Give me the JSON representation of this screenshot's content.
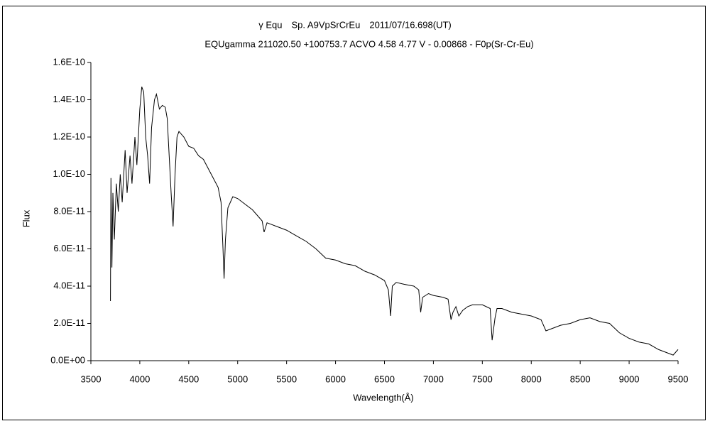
{
  "chart_data": {
    "type": "line",
    "title": "γ Equ　Sp. A9VpSrCrEu　2011/07/16.698(UT)",
    "subtitle": "EQUgamma 211020.50 +100753.7 ACVO 4.58 4.77 V - 0.00868 - F0p(Sr-Cr-Eu)",
    "xlabel": "Wavelength(Å)",
    "ylabel": "Flux",
    "color": "#000000",
    "xlim": [
      3500,
      9500
    ],
    "xticks": [
      3500,
      4000,
      4500,
      5000,
      5500,
      6000,
      6500,
      7000,
      7500,
      8000,
      8500,
      9000,
      9500
    ],
    "ylim": [
      0,
      1.6e-10
    ],
    "yticks": [
      {
        "value": 0,
        "label": "0.0E+00"
      },
      {
        "value": 2e-11,
        "label": "2.0E-11"
      },
      {
        "value": 4e-11,
        "label": "4.0E-11"
      },
      {
        "value": 6e-11,
        "label": "6.0E-11"
      },
      {
        "value": 8e-11,
        "label": "8.0E-11"
      },
      {
        "value": 1e-10,
        "label": "1.0E-10"
      },
      {
        "value": 1.2e-10,
        "label": "1.2E-10"
      },
      {
        "value": 1.4e-10,
        "label": "1.4E-10"
      },
      {
        "value": 1.6e-10,
        "label": "1.6E-10"
      }
    ],
    "x": [
      3700,
      3705,
      3715,
      3725,
      3740,
      3760,
      3780,
      3800,
      3820,
      3850,
      3870,
      3900,
      3920,
      3950,
      3970,
      4000,
      4020,
      4040,
      4060,
      4080,
      4100,
      4120,
      4150,
      4170,
      4200,
      4230,
      4260,
      4280,
      4300,
      4320,
      4340,
      4360,
      4380,
      4400,
      4450,
      4500,
      4550,
      4600,
      4650,
      4700,
      4750,
      4800,
      4830,
      4850,
      4861,
      4875,
      4900,
      4950,
      5000,
      5050,
      5100,
      5150,
      5200,
      5250,
      5270,
      5300,
      5400,
      5500,
      5600,
      5700,
      5800,
      5900,
      6000,
      6100,
      6200,
      6300,
      6400,
      6500,
      6540,
      6563,
      6580,
      6620,
      6700,
      6800,
      6850,
      6870,
      6890,
      6950,
      7000,
      7100,
      7150,
      7180,
      7200,
      7230,
      7260,
      7300,
      7350,
      7400,
      7500,
      7580,
      7600,
      7630,
      7650,
      7700,
      7800,
      7900,
      8000,
      8100,
      8150,
      8200,
      8300,
      8400,
      8500,
      8600,
      8700,
      8800,
      8900,
      9000,
      9100,
      9200,
      9300,
      9400,
      9450,
      9500
    ],
    "values": [
      3.2e-11,
      9.8e-11,
      5e-11,
      9e-11,
      6.5e-11,
      9.5e-11,
      8e-11,
      1e-10,
      8.5e-11,
      1.13e-10,
      9e-11,
      1.1e-10,
      9.5e-11,
      1.2e-10,
      1.05e-10,
      1.35e-10,
      1.47e-10,
      1.44e-10,
      1.2e-10,
      1.1e-10,
      9.5e-11,
      1.25e-10,
      1.4e-10,
      1.43e-10,
      1.35e-10,
      1.37e-10,
      1.36e-10,
      1.3e-10,
      1.1e-10,
      9e-11,
      7.2e-11,
      1e-10,
      1.2e-10,
      1.23e-10,
      1.2e-10,
      1.15e-10,
      1.14e-10,
      1.1e-10,
      1.08e-10,
      1.03e-10,
      9.8e-11,
      9.3e-11,
      8.5e-11,
      6e-11,
      4.4e-11,
      6.5e-11,
      8.2e-11,
      8.8e-11,
      8.7e-11,
      8.5e-11,
      8.3e-11,
      8.1e-11,
      7.8e-11,
      7.5e-11,
      6.9e-11,
      7.4e-11,
      7.2e-11,
      7e-11,
      6.7e-11,
      6.4e-11,
      6e-11,
      5.5e-11,
      5.4e-11,
      5.2e-11,
      5.1e-11,
      4.8e-11,
      4.6e-11,
      4.3e-11,
      3.8e-11,
      2.4e-11,
      4e-11,
      4.2e-11,
      4.1e-11,
      4e-11,
      3.8e-11,
      2.6e-11,
      3.4e-11,
      3.6e-11,
      3.5e-11,
      3.4e-11,
      3.3e-11,
      2.2e-11,
      2.6e-11,
      2.9e-11,
      2.4e-11,
      2.7e-11,
      2.9e-11,
      3e-11,
      3e-11,
      2.8e-11,
      1.1e-11,
      2.3e-11,
      2.8e-11,
      2.8e-11,
      2.6e-11,
      2.5e-11,
      2.4e-11,
      2.2e-11,
      1.6e-11,
      1.7e-11,
      1.9e-11,
      2e-11,
      2.2e-11,
      2.3e-11,
      2.1e-11,
      2e-11,
      1.5e-11,
      1.2e-11,
      1e-11,
      9e-12,
      6e-12,
      4e-12,
      3e-12,
      6e-12
    ]
  }
}
